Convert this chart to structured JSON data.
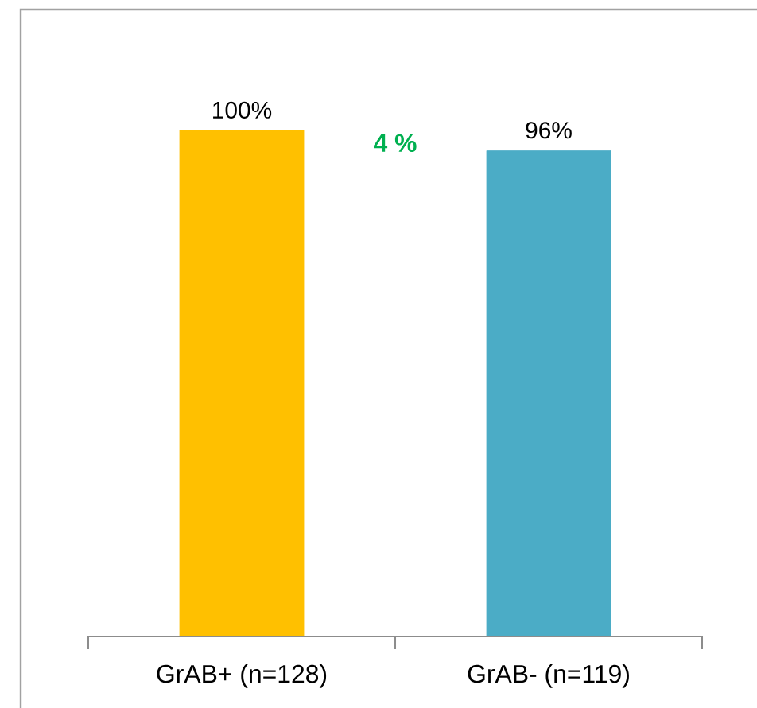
{
  "chart_data": {
    "type": "bar",
    "categories": [
      "GrAB+ (n=128)",
      "GrAB- (n=119)"
    ],
    "values": [
      100,
      96
    ],
    "colors": [
      "#ffc000",
      "#4bacc6"
    ],
    "value_labels": [
      "100%",
      "96%"
    ],
    "annotations": [
      "4 %"
    ]
  }
}
